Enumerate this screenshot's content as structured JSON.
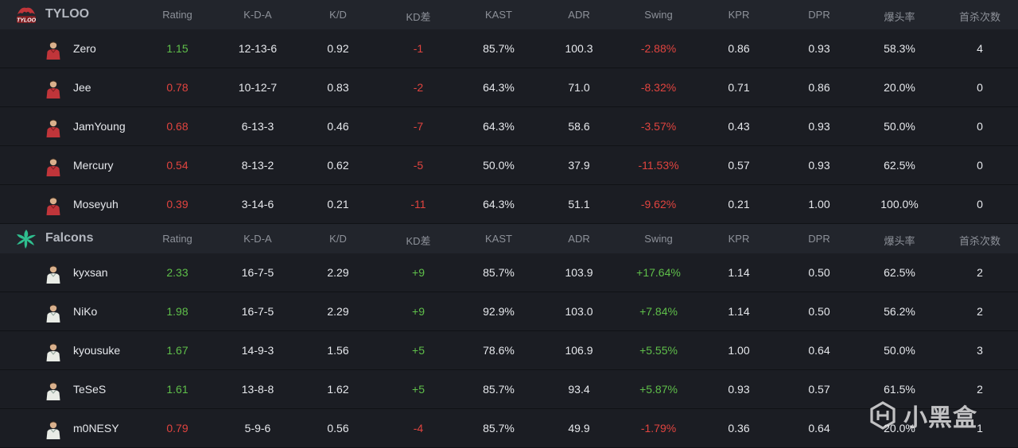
{
  "columns": [
    "Rating",
    "K-D-A",
    "K/D",
    "KD差",
    "KAST",
    "ADR",
    "Swing",
    "KPR",
    "DPR",
    "爆头率",
    "首杀次数"
  ],
  "teams": [
    {
      "name": "TYLOO",
      "logo_icon": "tyloo-logo-icon",
      "jersey_color": "#c0353a",
      "players": [
        {
          "name": "Zero",
          "rating": "1.15",
          "kda": "12-13-6",
          "kd": "0.92",
          "kd_diff": "-1",
          "kast": "85.7%",
          "adr": "100.3",
          "swing": "-2.88%",
          "kpr": "0.86",
          "dpr": "0.93",
          "hs": "58.3%",
          "fk": "4"
        },
        {
          "name": "Jee",
          "rating": "0.78",
          "kda": "10-12-7",
          "kd": "0.83",
          "kd_diff": "-2",
          "kast": "64.3%",
          "adr": "71.0",
          "swing": "-8.32%",
          "kpr": "0.71",
          "dpr": "0.86",
          "hs": "20.0%",
          "fk": "0"
        },
        {
          "name": "JamYoung",
          "rating": "0.68",
          "kda": "6-13-3",
          "kd": "0.46",
          "kd_diff": "-7",
          "kast": "64.3%",
          "adr": "58.6",
          "swing": "-3.57%",
          "kpr": "0.43",
          "dpr": "0.93",
          "hs": "50.0%",
          "fk": "0"
        },
        {
          "name": "Mercury",
          "rating": "0.54",
          "kda": "8-13-2",
          "kd": "0.62",
          "kd_diff": "-5",
          "kast": "50.0%",
          "adr": "37.9",
          "swing": "-11.53%",
          "kpr": "0.57",
          "dpr": "0.93",
          "hs": "62.5%",
          "fk": "0"
        },
        {
          "name": "Moseyuh",
          "rating": "0.39",
          "kda": "3-14-6",
          "kd": "0.21",
          "kd_diff": "-11",
          "kast": "64.3%",
          "adr": "51.1",
          "swing": "-9.62%",
          "kpr": "0.21",
          "dpr": "1.00",
          "hs": "100.0%",
          "fk": "0"
        }
      ]
    },
    {
      "name": "Falcons",
      "logo_icon": "falcons-logo-icon",
      "jersey_color": "#e9ece6",
      "players": [
        {
          "name": "kyxsan",
          "rating": "2.33",
          "kda": "16-7-5",
          "kd": "2.29",
          "kd_diff": "+9",
          "kast": "85.7%",
          "adr": "103.9",
          "swing": "+17.64%",
          "kpr": "1.14",
          "dpr": "0.50",
          "hs": "62.5%",
          "fk": "2"
        },
        {
          "name": "NiKo",
          "rating": "1.98",
          "kda": "16-7-5",
          "kd": "2.29",
          "kd_diff": "+9",
          "kast": "92.9%",
          "adr": "103.0",
          "swing": "+7.84%",
          "kpr": "1.14",
          "dpr": "0.50",
          "hs": "56.2%",
          "fk": "2"
        },
        {
          "name": "kyousuke",
          "rating": "1.67",
          "kda": "14-9-3",
          "kd": "1.56",
          "kd_diff": "+5",
          "kast": "78.6%",
          "adr": "106.9",
          "swing": "+5.55%",
          "kpr": "1.00",
          "dpr": "0.64",
          "hs": "50.0%",
          "fk": "3"
        },
        {
          "name": "TeSeS",
          "rating": "1.61",
          "kda": "13-8-8",
          "kd": "1.62",
          "kd_diff": "+5",
          "kast": "85.7%",
          "adr": "93.4",
          "swing": "+5.87%",
          "kpr": "0.93",
          "dpr": "0.57",
          "hs": "61.5%",
          "fk": "2"
        },
        {
          "name": "m0NESY",
          "rating": "0.79",
          "kda": "5-9-6",
          "kd": "0.56",
          "kd_diff": "-4",
          "kast": "85.7%",
          "adr": "49.9",
          "swing": "-1.79%",
          "kpr": "0.36",
          "dpr": "0.64",
          "hs": "20.0%",
          "fk": "1"
        }
      ]
    }
  ],
  "colors": {
    "positive": "#5fbf4a",
    "negative": "#e1443f",
    "header_bg": "#22252c",
    "row_bg": "#1b1d23"
  },
  "watermark": {
    "text": "小黑盒",
    "icon": "xiaoheihe-logo-icon"
  }
}
